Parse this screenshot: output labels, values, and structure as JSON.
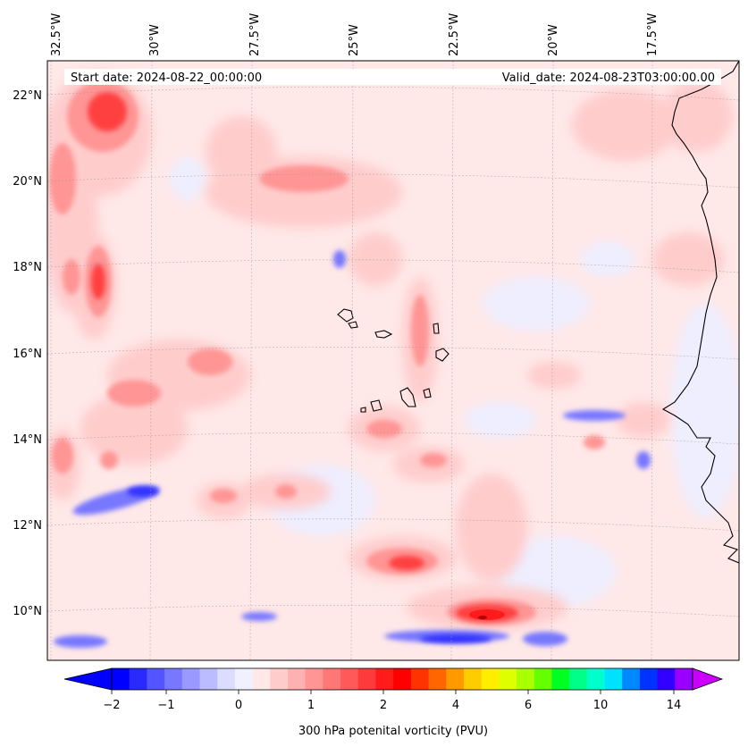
{
  "header": {
    "start_date": "Start date: 2024-08-22_00:00:00",
    "valid_date": "Valid_date: 2024-08-23T03:00:00.00"
  },
  "lon_labels": [
    "32.5°W",
    "30°W",
    "27.5°W",
    "25°W",
    "22.5°W",
    "20°W",
    "17.5°W"
  ],
  "lat_labels": [
    "22°N",
    "20°N",
    "18°N",
    "16°N",
    "14°N",
    "12°N",
    "10°N"
  ],
  "colorbar": {
    "label": "300 hPa potenital vorticity (PVU)",
    "tick_labels": [
      "−2",
      "−1",
      "0",
      "1",
      "2",
      "4",
      "6",
      "10",
      "14"
    ],
    "colors": [
      "#0000ff",
      "#2a2aff",
      "#5555ff",
      "#7777ff",
      "#9999ff",
      "#bbbbff",
      "#dcdcff",
      "#f0f0ff",
      "#ffe8e8",
      "#ffcccc",
      "#ffb0b0",
      "#ff9595",
      "#ff7777",
      "#ff5959",
      "#ff3a3a",
      "#ff1b1b",
      "#ff0000",
      "#ff3300",
      "#ff6600",
      "#ff9900",
      "#ffcc00",
      "#ffee00",
      "#ddff00",
      "#aaff00",
      "#66ff00",
      "#00ff22",
      "#00ff88",
      "#00ffcc",
      "#00e0ff",
      "#0088ff",
      "#0033ff",
      "#3300ff",
      "#9900ff"
    ],
    "under_color": "#0000ff",
    "over_color": "#cc00ff"
  }
}
